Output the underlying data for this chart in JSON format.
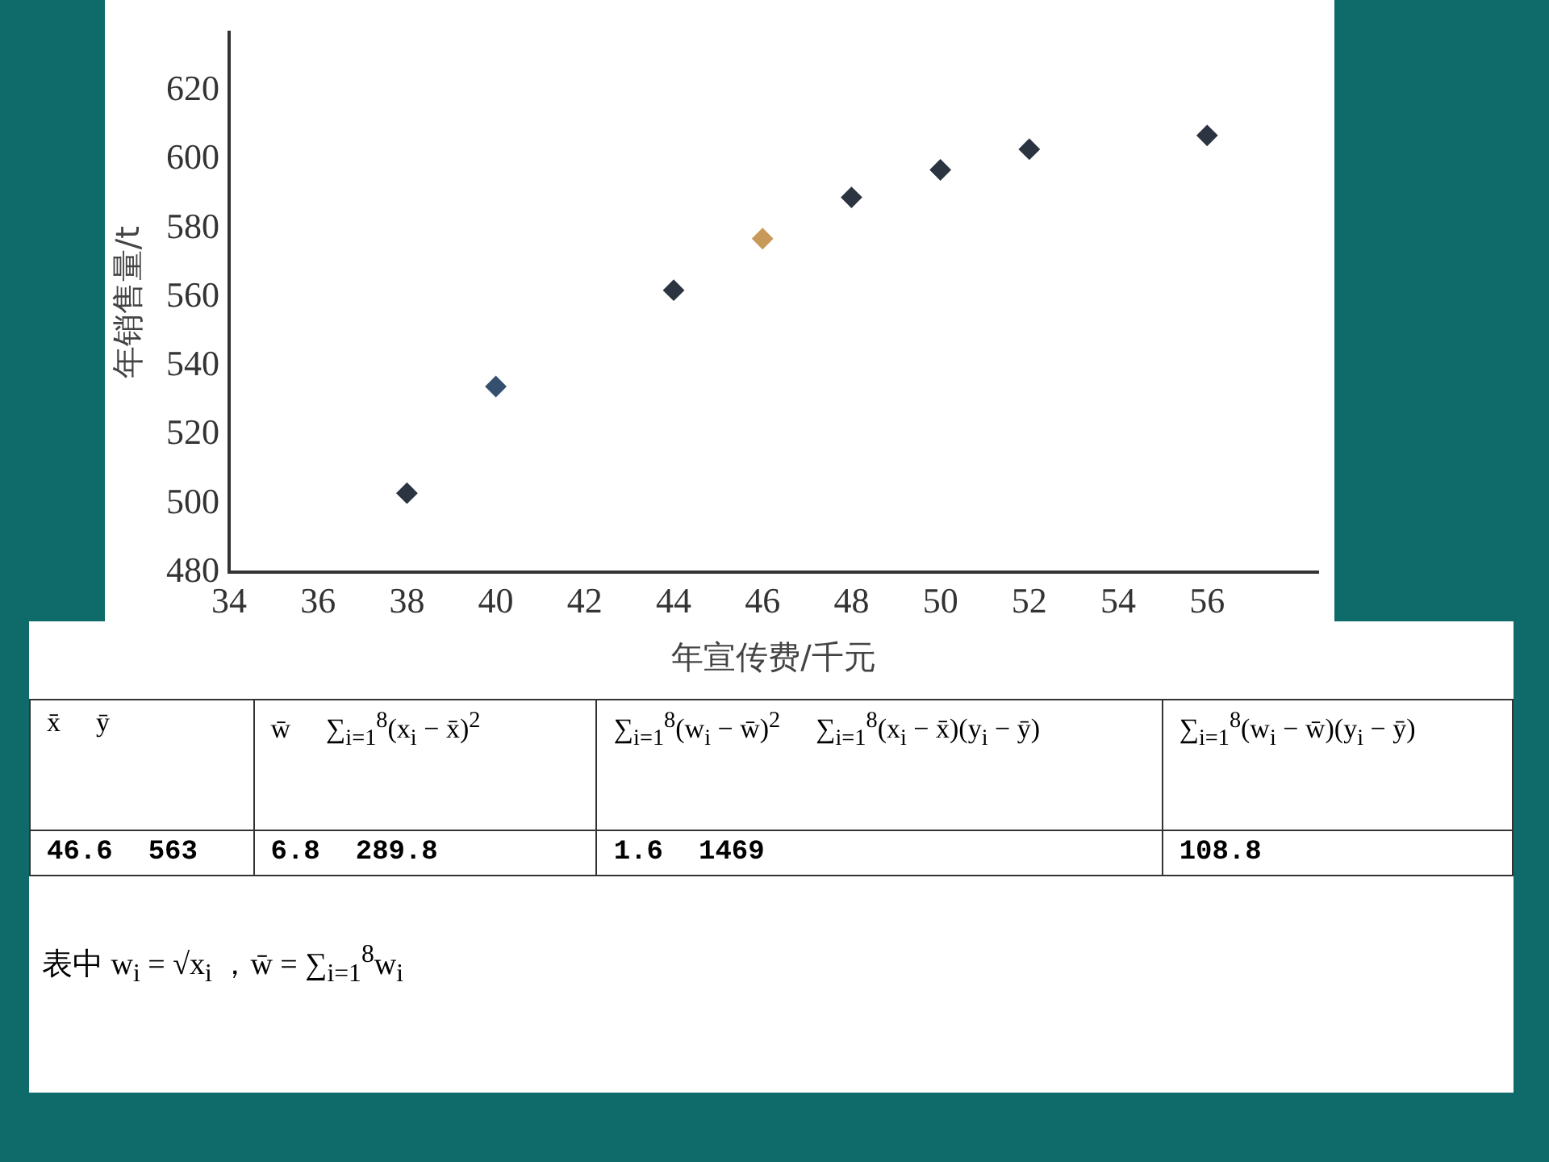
{
  "chart_data": {
    "type": "scatter",
    "xlabel": "年宣传费/千元",
    "ylabel": "年销售量/t",
    "x": [
      38,
      40,
      44,
      46,
      48,
      50,
      52,
      56
    ],
    "values": [
      503,
      534,
      562,
      577,
      589,
      597,
      603,
      607
    ],
    "colors": [
      "#2b3440",
      "#35506e",
      "#2b3440",
      "#c89a5a",
      "#2b3440",
      "#2b3440",
      "#2b3440",
      "#2b3440"
    ],
    "marker": "diamond",
    "grid": false,
    "xlim": [
      34,
      58.5
    ],
    "xticks": [
      34,
      36,
      38,
      40,
      42,
      44,
      46,
      48,
      50,
      52,
      54,
      56
    ],
    "ylim": [
      480,
      637
    ],
    "yticks": [
      480,
      500,
      520,
      540,
      560,
      580,
      600,
      620
    ],
    "annotations": [
      "x̄",
      "ȳ",
      "w̄",
      "∑$_{i=1}$$^{8}$(x$_{i}$ − x̄)$^{2}$",
      "∑$_{i=1}$$^{8}$(w$_{i}$ − w̄)$^{2}$",
      "∑$_{i=1}$$^{8}$(x$_{i}$ − x̄)(y$_{i}$ − ȳ)",
      "∑$_{i=1}$$^{8}$(w$_{i}$ − w̄)(y$_{i}$ − ȳ)",
      "46.6",
      "563",
      "6.8",
      "289.8",
      "1.6",
      "1469",
      "108.8",
      "表中 w$_{i}$ = √x$_{i}$ ，w̄ = ∑$_{i=1}$$^{8}$w$_{i}$"
    ]
  }
}
